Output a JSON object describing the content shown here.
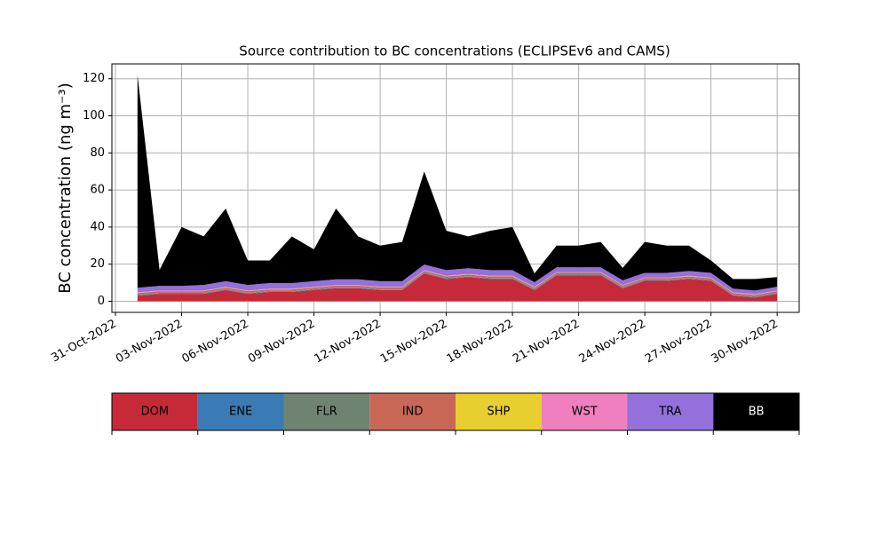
{
  "chart_data": {
    "type": "stacked_area",
    "title": "Source contribution to BC concentrations (ECLIPSEv6 and CAMS)",
    "y_label": "BC concentration (ng m⁻³)",
    "x": [
      "2022-11-01",
      "2022-11-02",
      "2022-11-03",
      "2022-11-04",
      "2022-11-05",
      "2022-11-06",
      "2022-11-07",
      "2022-11-08",
      "2022-11-09",
      "2022-11-10",
      "2022-11-11",
      "2022-11-12",
      "2022-11-13",
      "2022-11-14",
      "2022-11-15",
      "2022-11-16",
      "2022-11-17",
      "2022-11-18",
      "2022-11-19",
      "2022-11-20",
      "2022-11-21",
      "2022-11-22",
      "2022-11-23",
      "2022-11-24",
      "2022-11-25",
      "2022-11-26",
      "2022-11-27",
      "2022-11-28",
      "2022-11-29",
      "2022-11-30"
    ],
    "series": [
      {
        "name": "DOM",
        "color": "#c62a38",
        "values": [
          3,
          4,
          4,
          4,
          6,
          4,
          5,
          5,
          6,
          7,
          7,
          6,
          6,
          15,
          12,
          13,
          12,
          12,
          6,
          14,
          14,
          14,
          7,
          11,
          11,
          12,
          11,
          3,
          2,
          4
        ]
      },
      {
        "name": "ENE",
        "color": "#3a7bb5",
        "values": [
          0.3,
          0.3,
          0.3,
          0.3,
          0.3,
          0.3,
          0.3,
          0.3,
          0.3,
          0.3,
          0.3,
          0.3,
          0.3,
          0.3,
          0.3,
          0.3,
          0.3,
          0.3,
          0.3,
          0.3,
          0.3,
          0.3,
          0.3,
          0.3,
          0.3,
          0.3,
          0.3,
          0.3,
          0.3,
          0.3
        ]
      },
      {
        "name": "FLR",
        "color": "#6e8470",
        "values": [
          0.3,
          0.3,
          0.3,
          0.3,
          0.3,
          0.3,
          0.3,
          0.3,
          0.3,
          0.3,
          0.3,
          0.3,
          0.3,
          0.3,
          0.3,
          0.3,
          0.3,
          0.3,
          0.3,
          0.3,
          0.3,
          0.3,
          0.3,
          0.3,
          0.3,
          0.3,
          0.3,
          0.3,
          0.3,
          0.3
        ]
      },
      {
        "name": "IND",
        "color": "#c96757",
        "values": [
          0.8,
          0.8,
          0.8,
          0.8,
          0.8,
          0.8,
          0.8,
          0.8,
          0.8,
          0.8,
          0.8,
          0.8,
          0.8,
          0.8,
          0.8,
          0.8,
          0.8,
          0.8,
          0.8,
          0.8,
          0.8,
          0.8,
          0.8,
          0.8,
          0.8,
          0.8,
          0.8,
          0.8,
          0.8,
          0.8
        ]
      },
      {
        "name": "SHP",
        "color": "#e6cf2f",
        "values": [
          0.1,
          0.1,
          0.1,
          0.1,
          0.1,
          0.1,
          0.1,
          0.1,
          0.1,
          0.1,
          0.1,
          0.1,
          0.1,
          0.1,
          0.1,
          0.1,
          0.1,
          0.1,
          0.1,
          0.1,
          0.1,
          0.1,
          0.1,
          0.1,
          0.1,
          0.1,
          0.1,
          0.1,
          0.1,
          0.1
        ]
      },
      {
        "name": "WST",
        "color": "#f07fbf",
        "values": [
          0.3,
          0.3,
          0.3,
          0.3,
          0.3,
          0.3,
          0.3,
          0.3,
          0.3,
          0.3,
          0.3,
          0.3,
          0.3,
          0.3,
          0.3,
          0.3,
          0.3,
          0.3,
          0.3,
          0.3,
          0.3,
          0.3,
          0.3,
          0.3,
          0.3,
          0.3,
          0.3,
          0.3,
          0.3,
          0.3
        ]
      },
      {
        "name": "TRA",
        "color": "#9370db",
        "values": [
          2.5,
          2.5,
          2.5,
          3,
          3,
          3,
          3,
          3,
          3,
          3,
          3,
          3,
          3,
          3,
          3,
          3,
          3,
          3,
          2.5,
          2.5,
          2.5,
          2.5,
          2.5,
          2.5,
          2.5,
          2.5,
          2.5,
          2,
          2,
          2
        ]
      },
      {
        "name": "BB",
        "color": "#000000",
        "values": [
          114.7,
          8.7,
          31.7,
          26.2,
          39.2,
          13.2,
          12.2,
          25.2,
          17.2,
          38.2,
          23.2,
          19.2,
          21.2,
          50.2,
          21.2,
          17.2,
          21.2,
          23.2,
          4.7,
          11.7,
          11.7,
          13.7,
          6.7,
          16.7,
          14.7,
          13.7,
          6.7,
          5.2,
          6.2,
          5.2
        ]
      }
    ],
    "xlim": [
      "2022-10-31",
      "2022-12-01"
    ],
    "xticks": [
      {
        "value": "2022-10-31",
        "label": "31-Oct-2022"
      },
      {
        "value": "2022-11-03",
        "label": "03-Nov-2022"
      },
      {
        "value": "2022-11-06",
        "label": "06-Nov-2022"
      },
      {
        "value": "2022-11-09",
        "label": "09-Nov-2022"
      },
      {
        "value": "2022-11-12",
        "label": "12-Nov-2022"
      },
      {
        "value": "2022-11-15",
        "label": "15-Nov-2022"
      },
      {
        "value": "2022-11-18",
        "label": "18-Nov-2022"
      },
      {
        "value": "2022-11-21",
        "label": "21-Nov-2022"
      },
      {
        "value": "2022-11-24",
        "label": "24-Nov-2022"
      },
      {
        "value": "2022-11-27",
        "label": "27-Nov-2022"
      },
      {
        "value": "2022-11-30",
        "label": "30-Nov-2022"
      }
    ],
    "ylim": [
      -6,
      128
    ],
    "yticks": [
      0,
      20,
      40,
      60,
      80,
      100,
      120
    ],
    "grid": true,
    "legend": "bottom"
  }
}
